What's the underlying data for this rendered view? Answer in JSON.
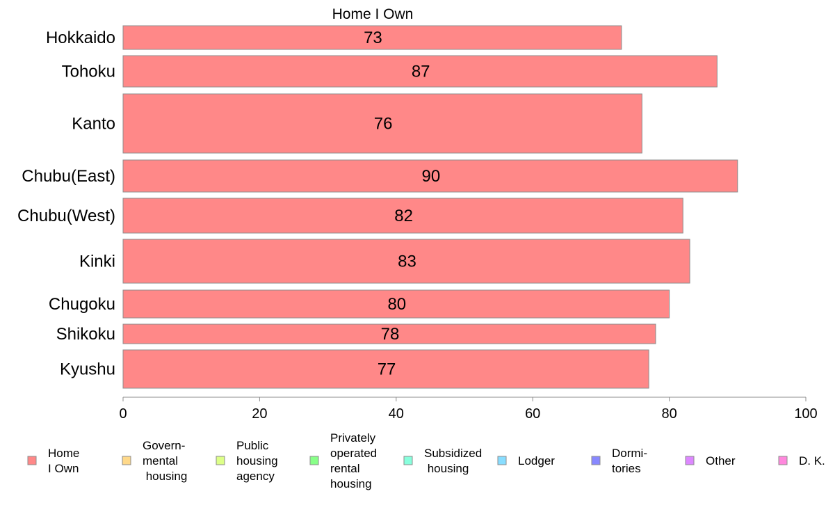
{
  "chart_data": {
    "type": "bar",
    "orientation": "horizontal",
    "title": "Home I Own",
    "categories": [
      "Hokkaido",
      "Tohoku",
      "Kanto",
      "Chubu(East)",
      "Chubu(West)",
      "Kinki",
      "Chugoku",
      "Shikoku",
      "Kyushu"
    ],
    "series": [
      {
        "name": "Home I Own",
        "values": [
          73,
          87,
          76,
          90,
          82,
          83,
          80,
          78,
          77
        ],
        "color": "#ff8888"
      }
    ],
    "data_labels": [
      "73",
      "87",
      "76",
      "90",
      "82",
      "83",
      "80",
      "78",
      "77"
    ],
    "xlim": [
      0,
      100
    ],
    "x_ticks": [
      "0",
      "20",
      "40",
      "60",
      "80",
      "100"
    ],
    "grid": false,
    "legend_position": "bottom",
    "legend": [
      {
        "label": [
          "Home",
          "I Own"
        ],
        "color": "#ff8888"
      },
      {
        "label": [
          "Govern-",
          "mental",
          " housing"
        ],
        "color": "#ffd98a"
      },
      {
        "label": [
          "Public",
          "housing",
          "agency"
        ],
        "color": "#ddff88"
      },
      {
        "label": [
          "Privately",
          "operated",
          "rental",
          "housing"
        ],
        "color": "#88ff88"
      },
      {
        "label": [
          "Subsidized",
          " housing"
        ],
        "color": "#88ffdd"
      },
      {
        "label": [
          "Lodger"
        ],
        "color": "#88ddff"
      },
      {
        "label": [
          "Dormi-",
          "tories"
        ],
        "color": "#8888ff"
      },
      {
        "label": [
          "Other"
        ],
        "color": "#dd88ff"
      },
      {
        "label": [
          "D. K."
        ],
        "color": "#ff88dd"
      }
    ]
  }
}
